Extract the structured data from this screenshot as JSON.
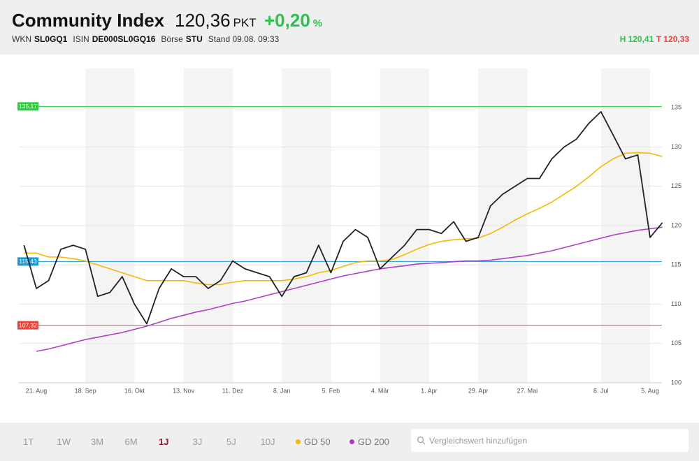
{
  "header": {
    "title": "Community Index",
    "price": "120,36",
    "unit": "PKT",
    "change": "+0,20",
    "change_unit": "%",
    "meta": [
      {
        "key": "WKN",
        "value": "SL0GQ1"
      },
      {
        "key": "ISIN",
        "value": "DE000SL0GQ16"
      },
      {
        "key": "Börse",
        "value": "STU"
      }
    ],
    "stand": "Stand 09.08. 09:33",
    "high": "H 120,41",
    "low": "T 120,33"
  },
  "chart_data": {
    "type": "line",
    "categories": [
      null,
      "21. Aug",
      null,
      null,
      null,
      "18. Sep",
      null,
      null,
      null,
      "16. Okt",
      null,
      null,
      null,
      "13. Nov",
      null,
      null,
      null,
      "11. Dez",
      null,
      null,
      null,
      "8. Jan",
      null,
      null,
      null,
      "5. Feb",
      null,
      null,
      null,
      "4. Mär",
      null,
      null,
      null,
      "1. Apr",
      null,
      null,
      null,
      "29. Apr",
      null,
      null,
      null,
      "27. Mai",
      null,
      null,
      null,
      null,
      null,
      "8. Jul",
      null,
      null,
      null,
      "5. Aug",
      null
    ],
    "series": [
      {
        "color": "#222222",
        "values": [
          117.5,
          112,
          113,
          117,
          117.5,
          117,
          111,
          111.5,
          113.5,
          110,
          107.5,
          112,
          114.5,
          113.5,
          113.5,
          112,
          113,
          115.5,
          114.5,
          114,
          113.5,
          111,
          113.5,
          114,
          117.5,
          114,
          118,
          119.5,
          118.5,
          114.5,
          116,
          117.5,
          119.5,
          119.5,
          119,
          120.5,
          118,
          118.5,
          122.5,
          124,
          125,
          126,
          126,
          128.5,
          130,
          131,
          133,
          134.5,
          131.5,
          128.5,
          129,
          118.5,
          120.36
        ]
      },
      {
        "name": "GD 50",
        "color": "#f5b800",
        "values": [
          116.5,
          116.5,
          116,
          116,
          115.8,
          115.5,
          115,
          114.5,
          114,
          113.5,
          113,
          113,
          113,
          113,
          112.7,
          112.5,
          112.5,
          112.8,
          113,
          113,
          113,
          113,
          113.2,
          113.5,
          114,
          114.3,
          114.8,
          115.3,
          115.5,
          115.5,
          115.7,
          116.3,
          117,
          117.6,
          118,
          118.2,
          118.3,
          118.4,
          119,
          119.8,
          120.7,
          121.5,
          122.2,
          123,
          124,
          125,
          126.2,
          127.5,
          128.5,
          129.2,
          129.3,
          129.2,
          128.8
        ]
      },
      {
        "name": "GD 200",
        "color": "#b03cc8",
        "values": [
          null,
          104,
          104.3,
          104.7,
          105.1,
          105.5,
          105.8,
          106.1,
          106.4,
          106.8,
          107.2,
          107.7,
          108.2,
          108.6,
          109,
          109.3,
          109.7,
          110.1,
          110.4,
          110.8,
          111.2,
          111.6,
          112,
          112.4,
          112.8,
          113.2,
          113.6,
          113.9,
          114.2,
          114.5,
          114.7,
          114.9,
          115.1,
          115.2,
          115.3,
          115.4,
          115.5,
          115.5,
          115.6,
          115.8,
          116,
          116.2,
          116.5,
          116.8,
          117.2,
          117.6,
          118,
          118.4,
          118.8,
          119.1,
          119.4,
          119.6,
          119.8
        ]
      }
    ],
    "reference_lines": [
      {
        "value": 135.17,
        "label": "135,17",
        "color": "#2ecc40"
      },
      {
        "value": 115.43,
        "label": "115,43",
        "color": "#1a9ad6"
      },
      {
        "value": 107.32,
        "label": "107,32",
        "color": "#e8453c"
      }
    ],
    "ylim": [
      100,
      140
    ],
    "yticks": [
      100,
      105,
      110,
      115,
      120,
      125,
      130,
      135
    ],
    "grid": true
  },
  "controls": {
    "ranges": [
      "1T",
      "1W",
      "3M",
      "6M",
      "1J",
      "3J",
      "5J",
      "10J"
    ],
    "active": "1J",
    "search": "Vergleichswert hinzufügen"
  }
}
